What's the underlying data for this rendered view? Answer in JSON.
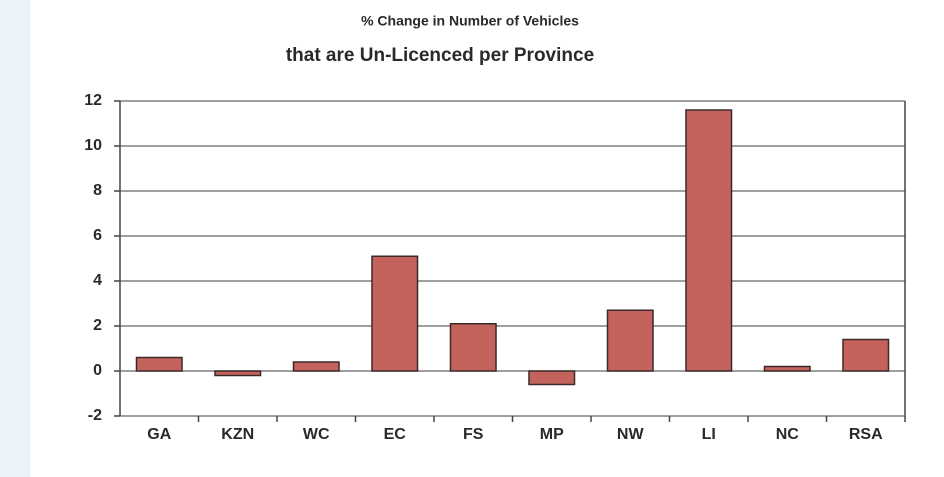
{
  "chart_data": {
    "type": "bar",
    "title": "% Change in Number of Vehicles",
    "subtitle": "that are Un-Licenced per Province",
    "categories": [
      "GA",
      "KZN",
      "WC",
      "EC",
      "FS",
      "MP",
      "NW",
      "LI",
      "NC",
      "RSA"
    ],
    "values": [
      0.6,
      -0.2,
      0.4,
      5.1,
      2.1,
      -0.6,
      2.7,
      11.6,
      0.2,
      1.4
    ],
    "color": "#c4625c",
    "ylim": [
      -2,
      12
    ],
    "yticks": [
      -2,
      0,
      2,
      4,
      6,
      8,
      10,
      12
    ],
    "grid": true
  }
}
